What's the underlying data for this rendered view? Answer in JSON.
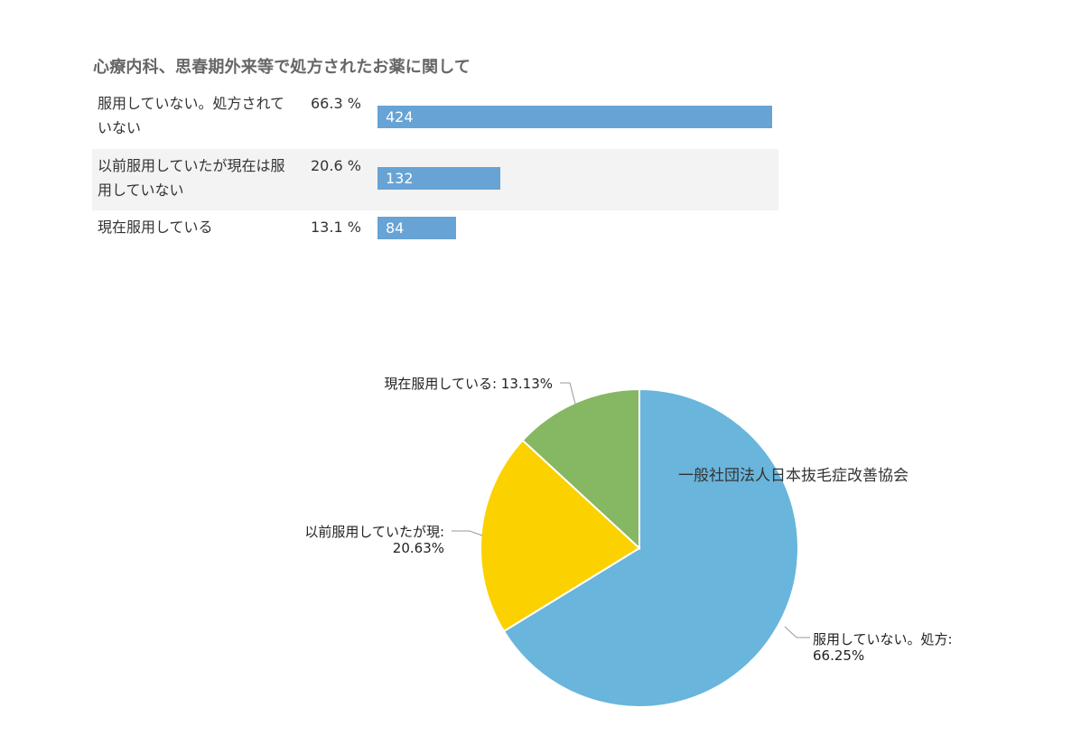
{
  "title": "心療内科、思春期外来等で処方されたお薬に関して",
  "table": {
    "rows": [
      {
        "label": "服用していない。処方されていない",
        "percent": "66.3 %",
        "count": "424"
      },
      {
        "label": "以前服用していたが現在は服用していない",
        "percent": "20.6 %",
        "count": "132"
      },
      {
        "label": "現在服用している",
        "percent": "13.1 %",
        "count": "84"
      }
    ]
  },
  "chart_data": [
    {
      "type": "bar",
      "categories": [
        "服用していない。処方されていない",
        "以前服用していたが現在は服用していない",
        "現在服用している"
      ],
      "values": [
        424,
        132,
        84
      ],
      "percent_labels": [
        "66.3 %",
        "20.6 %",
        "13.1 %"
      ],
      "color": "#67a3d4"
    },
    {
      "type": "pie",
      "watermark": "一般社団法人日本抜毛症改善協会",
      "slices": [
        {
          "label": "服用していない。処方:",
          "value": 66.25,
          "pct_label": "66.25%",
          "color": "#69b5dc"
        },
        {
          "label": "以前服用していたが現:",
          "value": 20.63,
          "pct_label": "20.63%",
          "color": "#fbd200"
        },
        {
          "label": "現在服用している:",
          "value": 13.13,
          "pct_label": "13.13%",
          "color": "#86b762"
        }
      ]
    }
  ]
}
